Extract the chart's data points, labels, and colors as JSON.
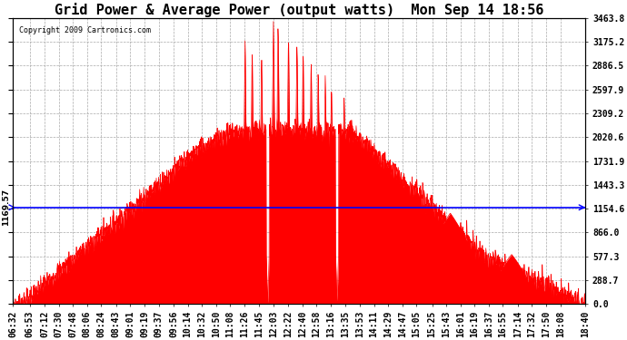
{
  "title": "Grid Power & Average Power (output watts)  Mon Sep 14 18:56",
  "copyright": "Copyright 2009 Cartronics.com",
  "avg_line_value": 1169.57,
  "avg_label": "1169.57",
  "ymax": 3463.8,
  "yticks": [
    0.0,
    288.7,
    577.3,
    866.0,
    1154.6,
    1443.3,
    1731.9,
    2020.6,
    2309.2,
    2597.9,
    2886.5,
    3175.2,
    3463.8
  ],
  "background_color": "#ffffff",
  "fill_color": "#ff0000",
  "line_color": "#ff0000",
  "avg_line_color": "#0000ff",
  "grid_color": "#aaaaaa",
  "title_fontsize": 11,
  "tick_fontsize": 7,
  "x_tick_labels": [
    "06:32",
    "06:53",
    "07:12",
    "07:30",
    "07:48",
    "08:06",
    "08:24",
    "08:43",
    "09:01",
    "09:19",
    "09:37",
    "09:56",
    "10:14",
    "10:32",
    "10:50",
    "11:08",
    "11:26",
    "11:45",
    "12:03",
    "12:22",
    "12:40",
    "12:58",
    "13:16",
    "13:35",
    "13:53",
    "14:11",
    "14:29",
    "14:47",
    "15:05",
    "15:25",
    "15:43",
    "16:01",
    "16:19",
    "16:37",
    "16:55",
    "17:14",
    "17:32",
    "17:50",
    "18:08",
    "18:40"
  ]
}
